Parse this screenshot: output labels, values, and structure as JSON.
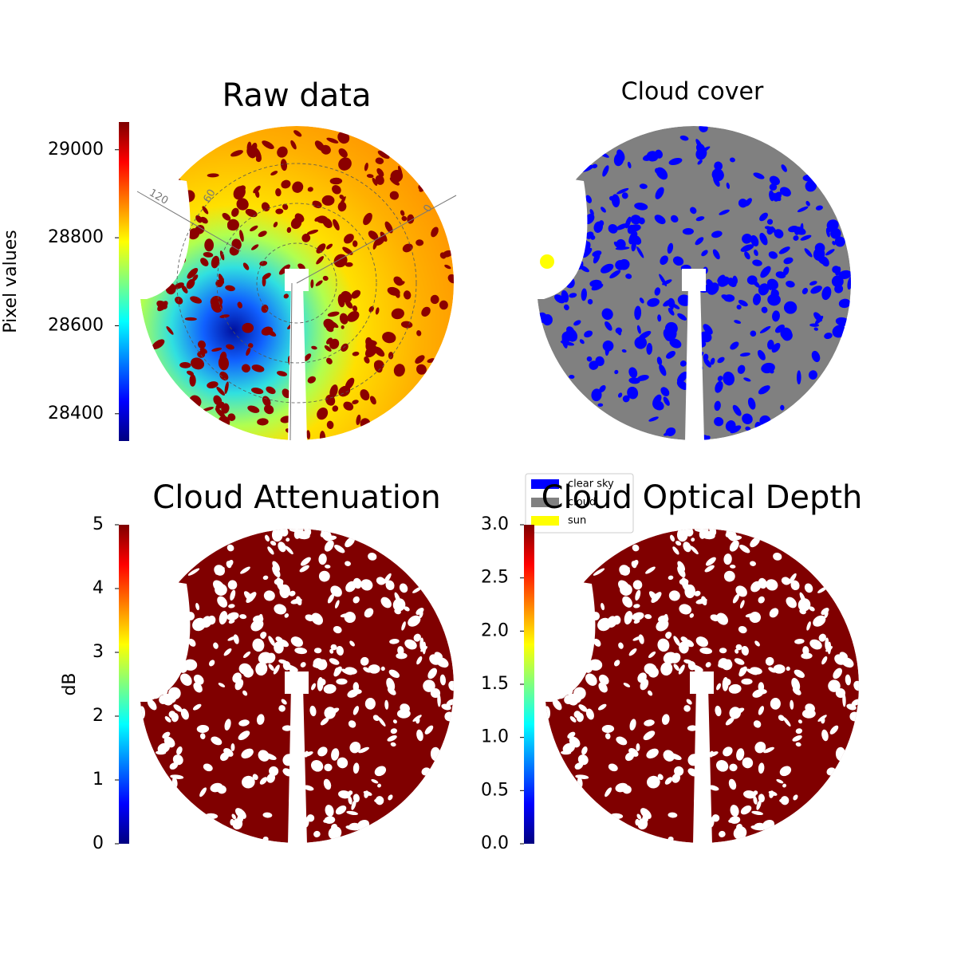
{
  "chart_data": [
    {
      "type": "image",
      "title": "Raw data",
      "colorbar_label": "Pixel values",
      "clim": [
        28338,
        29063
      ],
      "cticks": [
        28400,
        28600,
        28800,
        29000
      ],
      "annotations": [
        "120",
        "60",
        "0"
      ]
    },
    {
      "type": "image",
      "title": "Cloud cover",
      "legend": [
        {
          "name": "clear sky",
          "color": "#0000ff"
        },
        {
          "name": "cloud",
          "color": "#808080"
        },
        {
          "name": "sun",
          "color": "#ffff00"
        }
      ]
    },
    {
      "type": "image",
      "title": "Cloud Attenuation",
      "colorbar_label": "dB",
      "clim": [
        0,
        5
      ],
      "cticks": [
        0,
        1,
        2,
        3,
        4,
        5
      ]
    },
    {
      "type": "image",
      "title": "Cloud Optical Depth",
      "clim": [
        0,
        3
      ],
      "cticks": [
        {
          "value": 0,
          "label": "0.0"
        },
        {
          "value": 0.5,
          "label": "0.5"
        },
        {
          "value": 1,
          "label": "1.0"
        },
        {
          "value": 1.5,
          "label": "1.5"
        },
        {
          "value": 2,
          "label": "2.0"
        },
        {
          "value": 2.5,
          "label": "2.5"
        },
        {
          "value": 3,
          "label": "3.0"
        }
      ]
    }
  ]
}
